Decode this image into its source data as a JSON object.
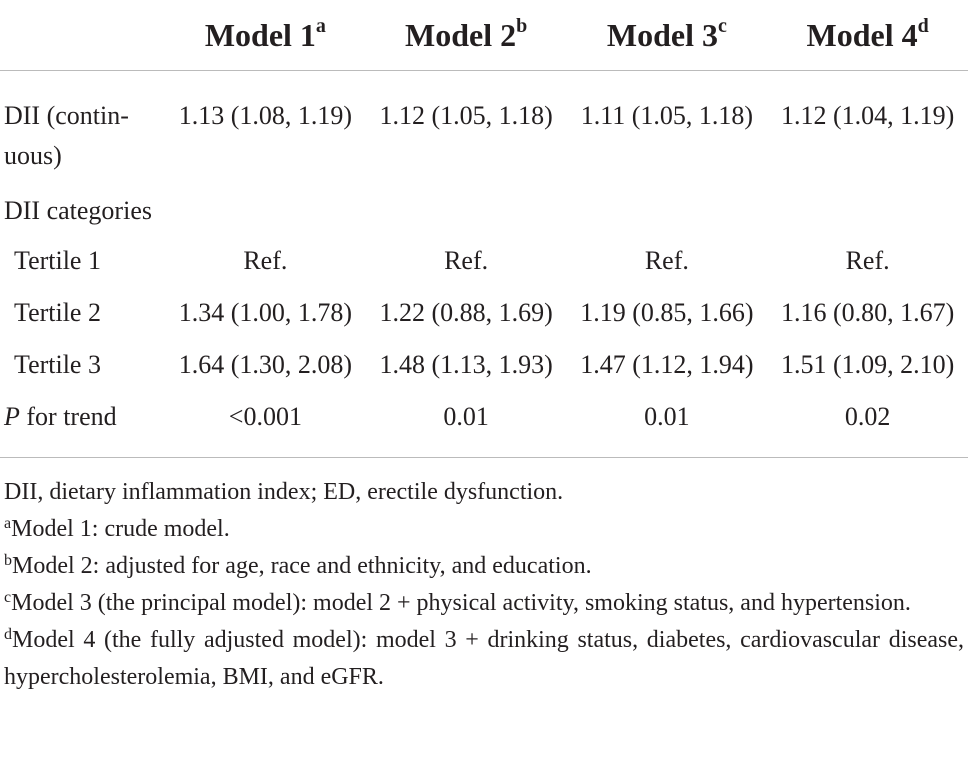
{
  "table": {
    "columns": [
      {
        "label": "Model 1",
        "sup": "a"
      },
      {
        "label": "Model 2",
        "sup": "b"
      },
      {
        "label": "Model 3",
        "sup": "c"
      },
      {
        "label": "Model 4",
        "sup": "d"
      }
    ],
    "rows": [
      {
        "label": "DII (contin­uous)",
        "cells": [
          "1.13 (1.08, 1.19)",
          "1.12 (1.05, 1.18)",
          "1.11 (1.05, 1.18)",
          "1.12 (1.04, 1.19)"
        ]
      },
      {
        "label": "DII categories",
        "cells": []
      },
      {
        "label": "Tertile 1",
        "indent": true,
        "cells": [
          "Ref.",
          "Ref.",
          "Ref.",
          "Ref."
        ]
      },
      {
        "label": "Tertile 2",
        "indent": true,
        "cells": [
          "1.34 (1.00, 1.78)",
          "1.22 (0.88, 1.69)",
          "1.19 (0.85, 1.66)",
          "1.16 (0.80, 1.67)"
        ]
      },
      {
        "label": "Tertile 3",
        "indent": true,
        "cells": [
          "1.64 (1.30, 2.08)",
          "1.48 (1.13, 1.93)",
          "1.47 (1.12, 1.94)",
          "1.51 (1.09, 2.10)"
        ]
      },
      {
        "label_italic": "P",
        "label": " for trend",
        "cells": [
          "<0.001",
          "0.01",
          "0.01",
          "0.02"
        ]
      }
    ]
  },
  "footnotes": {
    "text": "DII, dietary inflammation index; ED, erectile dysfunction.",
    "notes": [
      {
        "sup": "a",
        "text": "Model 1: crude model."
      },
      {
        "sup": "b",
        "text": "Model 2: adjusted for age, race and ethnicity, and education."
      },
      {
        "sup": "c",
        "text": "Model 3 (the principal model): model 2 + physical activity, smoking status, and hypertension."
      },
      {
        "sup": "d",
        "text": "Model 4 (the fully adjusted model): model 3 + drinking status, diabetes, cardiovascular disease, hypercholesterolemia, BMI, and eGFR."
      }
    ]
  }
}
